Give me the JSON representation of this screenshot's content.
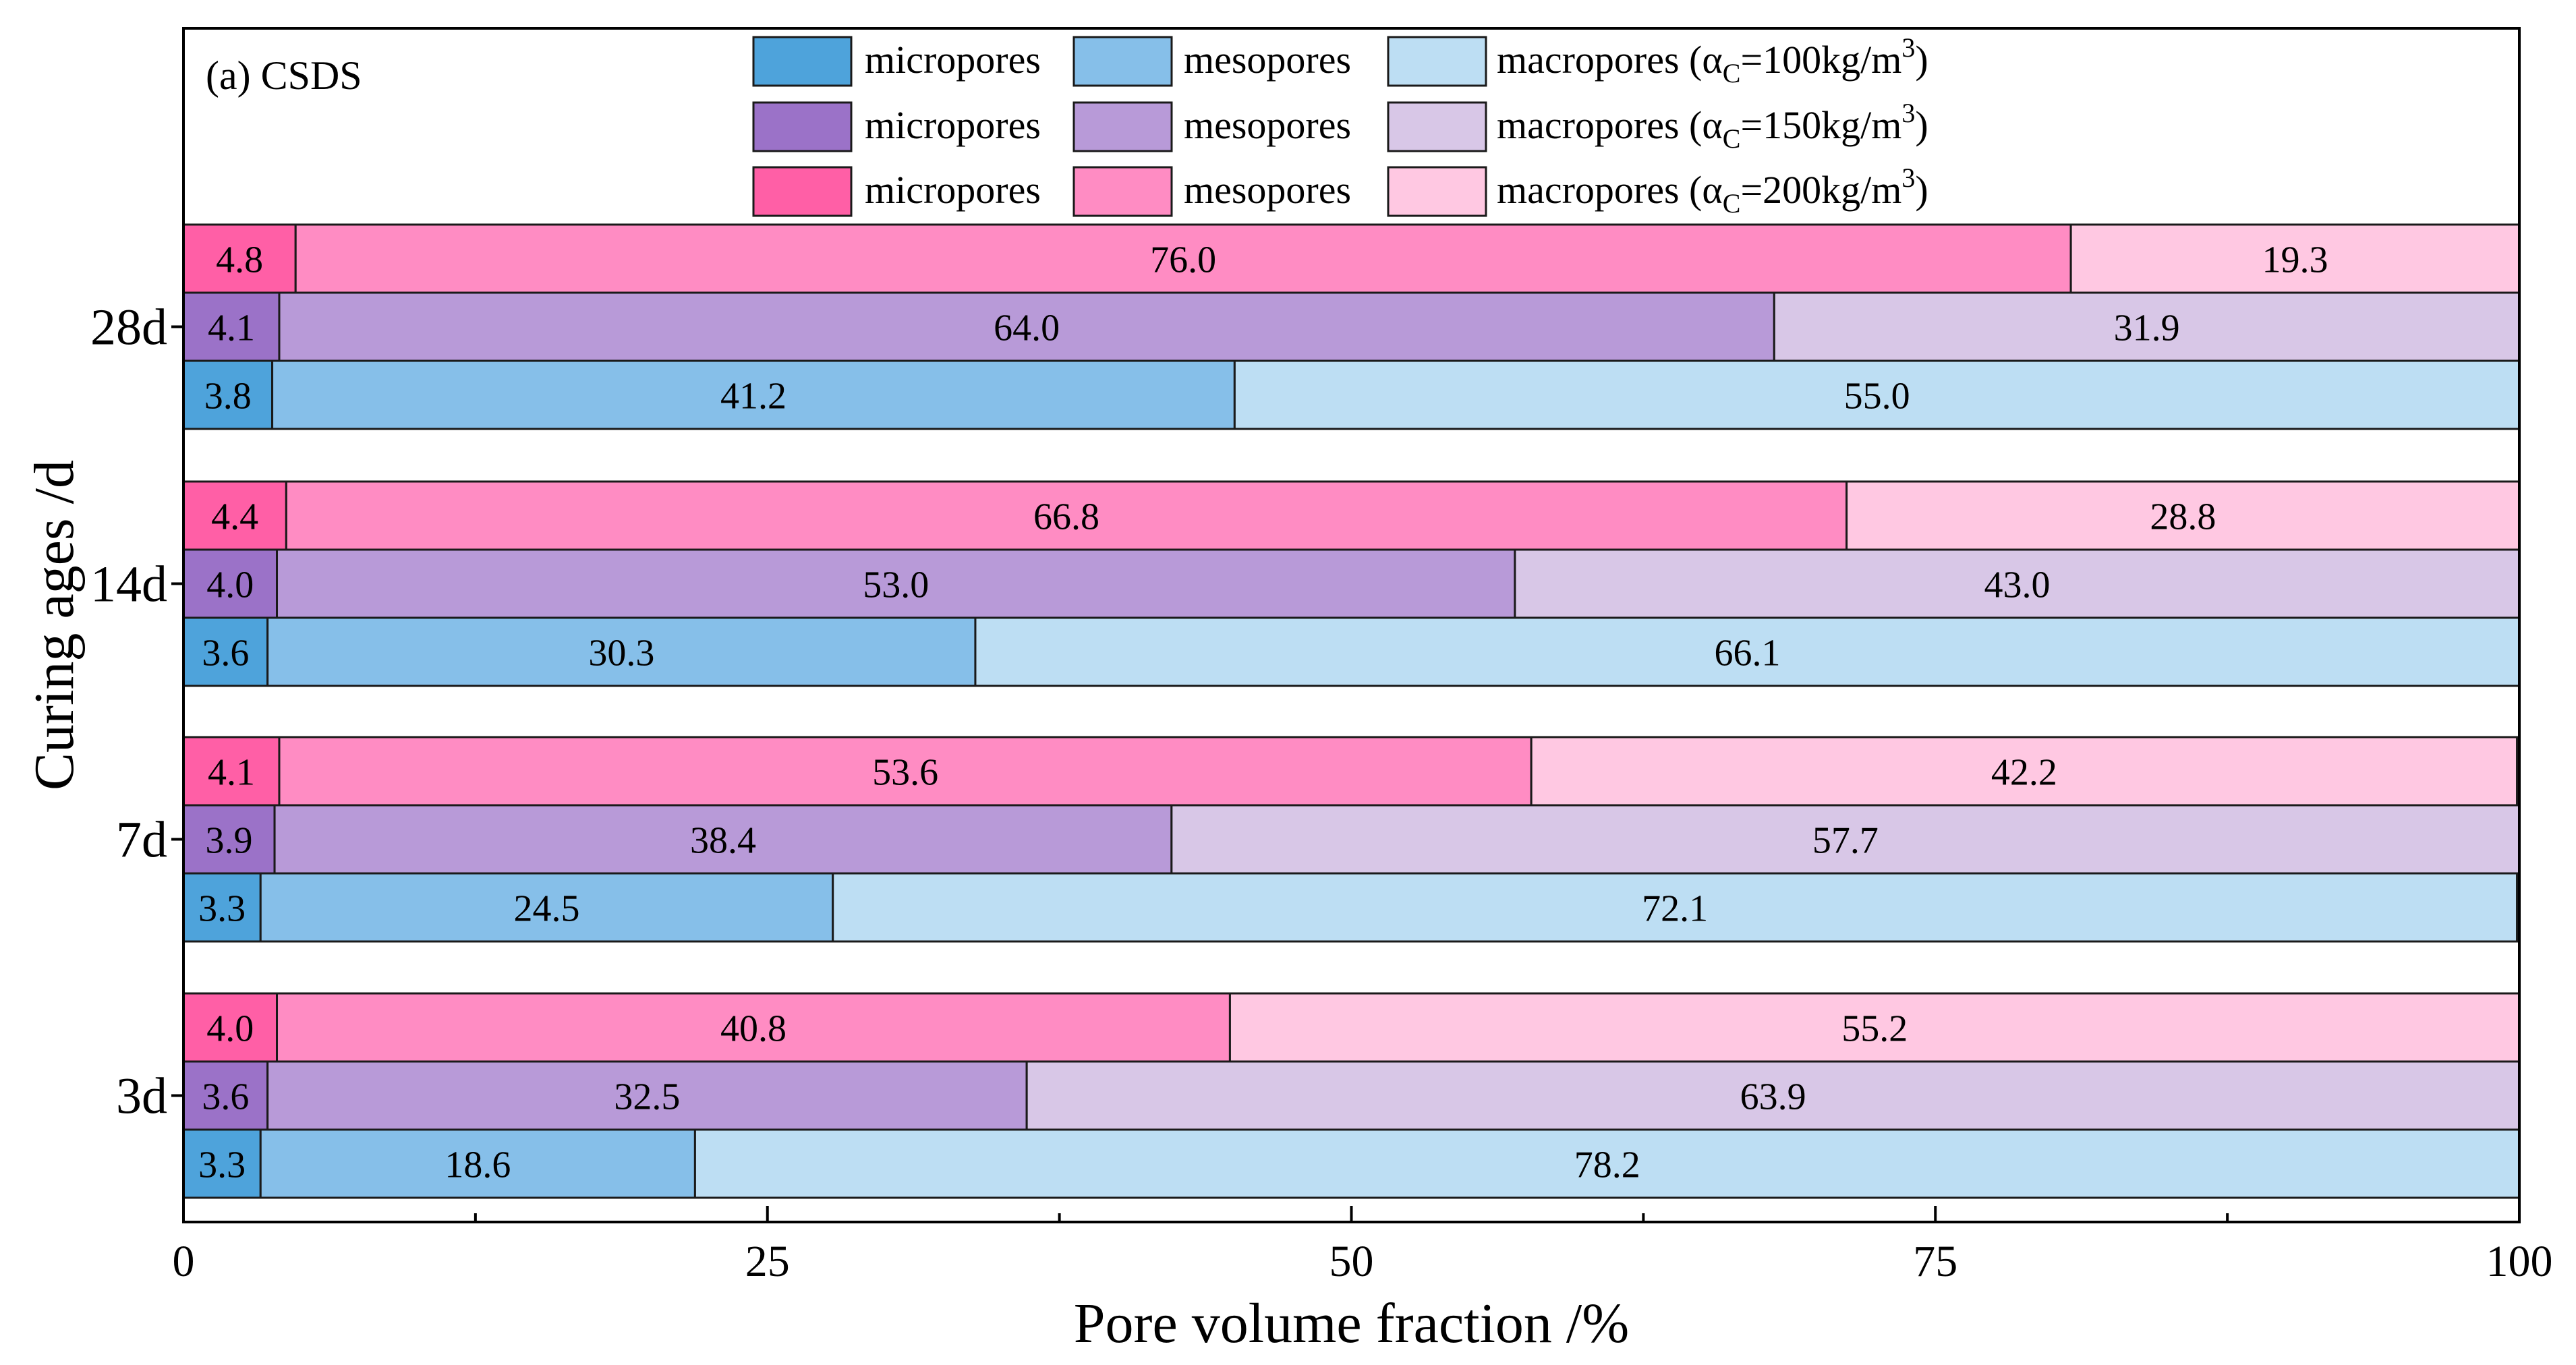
{
  "chart_data": {
    "type": "bar",
    "orientation": "horizontal",
    "stacked": true,
    "panel_label": "(a) CSDS",
    "xlabel": "Pore volume fraction /%",
    "ylabel": "Curing ages /d",
    "xlim": [
      0,
      100
    ],
    "xticks": [
      "0",
      "25",
      "50",
      "75",
      "100"
    ],
    "categories": [
      "3d",
      "7d",
      "14d",
      "28d"
    ],
    "series_groups": [
      {
        "alpha": "α",
        "alpha_sub": "C",
        "alpha_value": "=100kg/m",
        "alpha_sup": "3",
        "label_close": ")",
        "components": [
          {
            "name": "micropores",
            "color": "#4ea3db",
            "values": [
              3.3,
              3.3,
              3.6,
              3.8
            ],
            "labels": [
              "3.3",
              "3.3",
              "3.6",
              "3.8"
            ]
          },
          {
            "name": "mesopores",
            "color": "#86bfe9",
            "values": [
              18.6,
              24.5,
              30.3,
              41.2
            ],
            "labels": [
              "18.6",
              "24.5",
              "30.3",
              "41.2"
            ]
          },
          {
            "name": "macropores (",
            "color": "#bddef3",
            "values": [
              78.2,
              72.1,
              66.1,
              55.0
            ],
            "labels": [
              "78.2",
              "72.1",
              "66.1",
              "55.0"
            ]
          }
        ]
      },
      {
        "alpha": "α",
        "alpha_sub": "C",
        "alpha_value": "=150kg/m",
        "alpha_sup": "3",
        "label_close": ")",
        "components": [
          {
            "name": "micropores",
            "color": "#9b72c8",
            "values": [
              3.6,
              3.9,
              4.0,
              4.1
            ],
            "labels": [
              "3.6",
              "3.9",
              "4.0",
              "4.1"
            ]
          },
          {
            "name": "mesopores",
            "color": "#b89ad8",
            "values": [
              32.5,
              38.4,
              53.0,
              64.0
            ],
            "labels": [
              "32.5",
              "38.4",
              "53.0",
              "64.0"
            ]
          },
          {
            "name": "macropores (",
            "color": "#d8c7e7",
            "values": [
              63.9,
              57.7,
              43.0,
              31.9
            ],
            "labels": [
              "63.9",
              "57.7",
              "43.0",
              "31.9"
            ]
          }
        ]
      },
      {
        "alpha": "α",
        "alpha_sub": "C",
        "alpha_value": "=200kg/m",
        "alpha_sup": "3",
        "label_close": ")",
        "components": [
          {
            "name": "micropores",
            "color": "#ff5fa6",
            "values": [
              4.0,
              4.1,
              4.4,
              4.8
            ],
            "labels": [
              "4.0",
              "4.1",
              "4.4",
              "4.8"
            ]
          },
          {
            "name": "mesopores",
            "color": "#ff8cc3",
            "values": [
              40.8,
              53.6,
              66.8,
              76.0
            ],
            "labels": [
              "40.8",
              "53.6",
              "66.8",
              "76.0"
            ]
          },
          {
            "name": "macropores (",
            "color": "#ffc8e2",
            "values": [
              55.2,
              42.2,
              28.8,
              19.3
            ],
            "labels": [
              "55.2",
              "42.2",
              "28.8",
              "19.3"
            ]
          }
        ]
      }
    ]
  }
}
